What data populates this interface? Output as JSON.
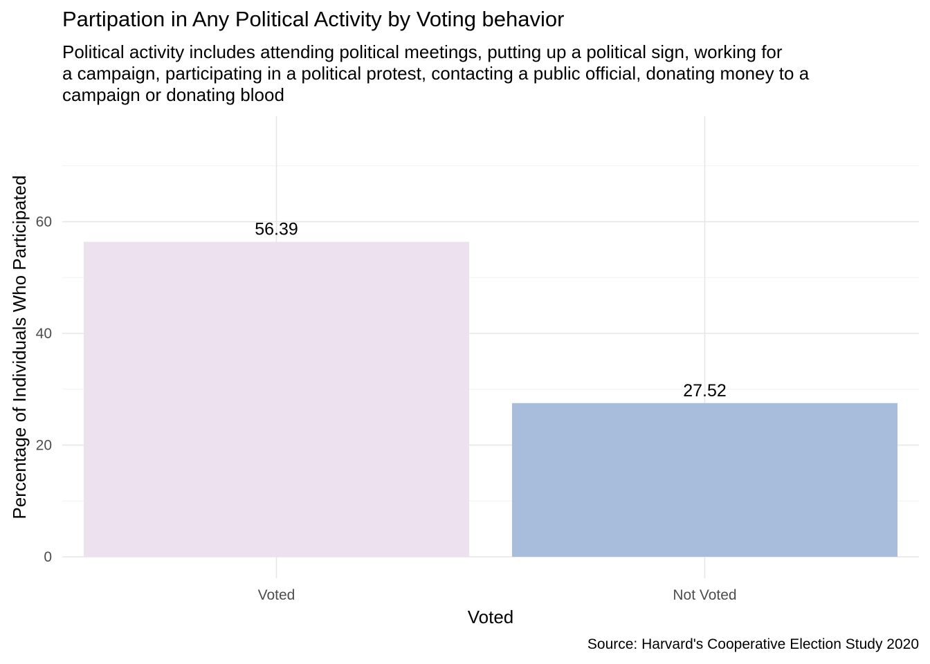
{
  "chart_data": {
    "type": "bar",
    "title": "Partipation in Any Political Activity by Voting behavior",
    "subtitle_lines": [
      "Political activity includes attending political meetings, putting up a political sign, working for",
      "a campaign, participating in a political protest, contacting a public official, donating money to a",
      "campaign or donating blood"
    ],
    "xlabel": "Voted",
    "ylabel": "Percentage of Individuals Who Participated",
    "caption": "Source: Harvard's Cooperative Election Study 2020",
    "categories": [
      "Voted",
      "Not Voted"
    ],
    "values": [
      56.39,
      27.52
    ],
    "data_labels": [
      "56.39",
      "27.52"
    ],
    "colors": [
      "#EEE1EF",
      "#A8BCDC"
    ],
    "ylim": [
      0,
      72
    ],
    "yticks": [
      0,
      20,
      40,
      60
    ],
    "grid": true,
    "legend": "none"
  }
}
